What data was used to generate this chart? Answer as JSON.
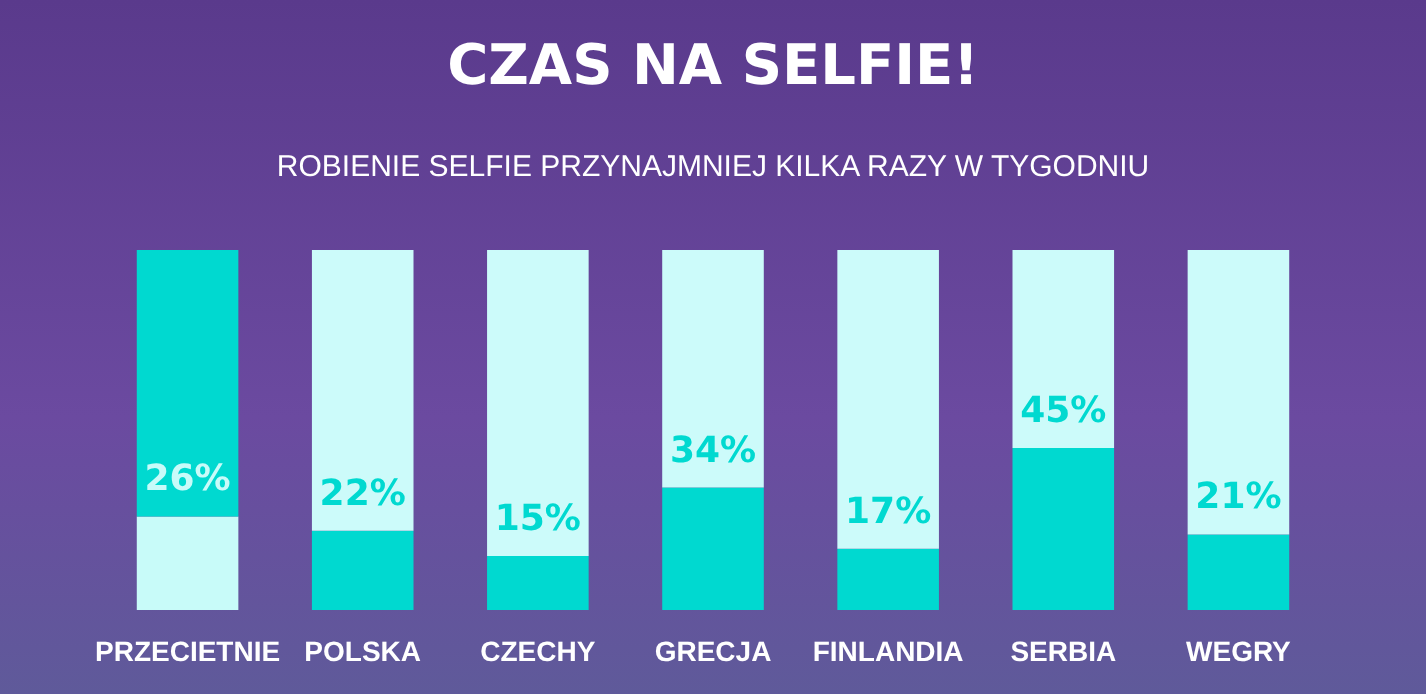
{
  "chart_data": {
    "type": "bar",
    "title": "CZAS NA SELFIE!",
    "subtitle": "ROBIENIE SELFIE PRZYNAJMNIEJ KILKA RAZY W TYGODNIU",
    "categories": [
      "PRZECIETNIE",
      "POLSKA",
      "CZECHY",
      "GRECJA",
      "FINLANDIA",
      "SERBIA",
      "WEGRY"
    ],
    "stacked": true,
    "ylim": [
      0,
      100
    ],
    "series": [
      {
        "values": [
          26,
          22,
          15,
          34,
          17,
          45,
          21
        ],
        "value_labels": [
          "26%",
          "22%",
          "15%",
          "34%",
          "17%",
          "45%",
          "21%"
        ],
        "colors": [
          "#c8fbf9",
          "#00d9d0",
          "#00d9d0",
          "#00d9d0",
          "#00d9d0",
          "#00d9d0",
          "#00d9d0"
        ]
      },
      {
        "values": [
          74,
          78,
          85,
          66,
          83,
          55,
          79
        ],
        "colors": [
          "#00d9d0",
          "#ccfbfa",
          "#ccfbfa",
          "#ccfbfa",
          "#ccfbfa",
          "#ccfbfa",
          "#ccfbfa"
        ]
      }
    ]
  }
}
